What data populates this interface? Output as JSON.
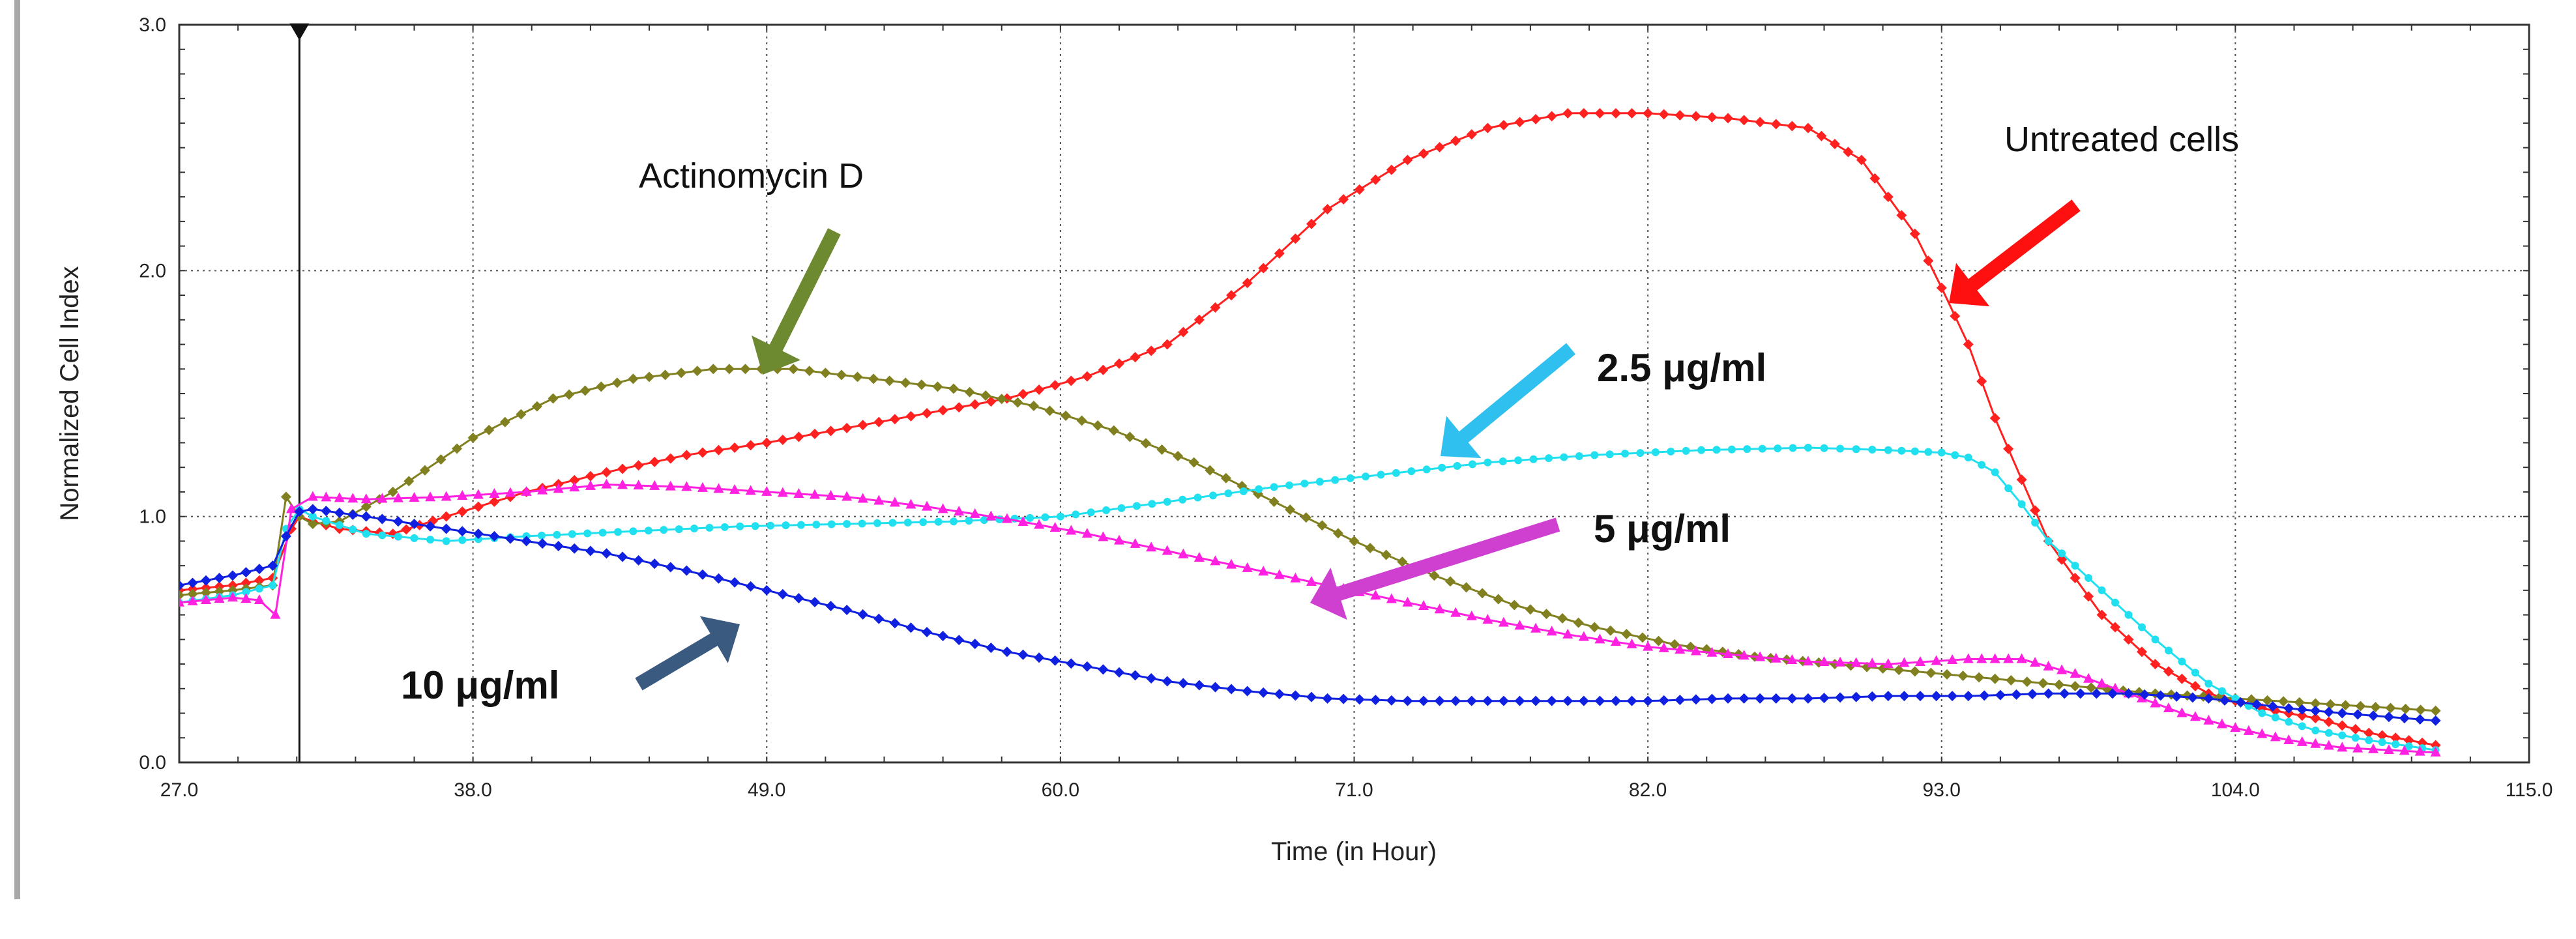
{
  "chart_data": {
    "type": "line",
    "title": "",
    "xlabel": "Time (in Hour)",
    "ylabel": "Normalized Cell Index",
    "xlim": [
      27.0,
      115.0
    ],
    "ylim": [
      0.0,
      3.0
    ],
    "xticks": [
      "27.0",
      "38.0",
      "49.0",
      "60.0",
      "71.0",
      "82.0",
      "93.0",
      "104.0",
      "115.0"
    ],
    "yticks": [
      "0.0",
      "1.0",
      "2.0",
      "3.0"
    ],
    "grid": true,
    "treatment_marker_time": 31.5,
    "series": [
      {
        "name": "Untreated cells",
        "color": "#ff2020",
        "marker": "diamond",
        "x": [
          27,
          29,
          30.5,
          31.2,
          31.5,
          32,
          33,
          35,
          37,
          40,
          43,
          46,
          49,
          52,
          55,
          58,
          61,
          64,
          67,
          70,
          73,
          76,
          79,
          82,
          85,
          88,
          90,
          92,
          93,
          94,
          95,
          97,
          99,
          101,
          103,
          105,
          107,
          109,
          111.5
        ],
        "y": [
          0.7,
          0.72,
          0.75,
          0.95,
          1.0,
          0.98,
          0.95,
          0.93,
          1.0,
          1.1,
          1.18,
          1.25,
          1.3,
          1.36,
          1.42,
          1.48,
          1.57,
          1.7,
          1.95,
          2.25,
          2.45,
          2.58,
          2.64,
          2.64,
          2.62,
          2.58,
          2.45,
          2.15,
          1.93,
          1.7,
          1.4,
          0.9,
          0.6,
          0.4,
          0.28,
          0.22,
          0.18,
          0.12,
          0.07
        ]
      },
      {
        "name": "Actinomycin D",
        "color": "#808020",
        "marker": "diamond",
        "x": [
          27,
          29,
          30.5,
          31,
          31.5,
          32,
          33,
          35,
          38,
          41,
          44,
          47,
          50,
          53,
          56,
          59,
          62,
          65,
          68,
          71,
          74,
          77,
          80,
          83,
          86,
          89,
          92,
          95,
          98,
          101,
          104,
          107,
          111.5
        ],
        "y": [
          0.68,
          0.7,
          0.72,
          1.08,
          1.0,
          0.97,
          0.98,
          1.1,
          1.32,
          1.48,
          1.56,
          1.6,
          1.6,
          1.56,
          1.52,
          1.45,
          1.35,
          1.22,
          1.06,
          0.9,
          0.76,
          0.64,
          0.55,
          0.48,
          0.43,
          0.4,
          0.37,
          0.34,
          0.31,
          0.28,
          0.26,
          0.24,
          0.21
        ]
      },
      {
        "name": "2.5 μg/ml",
        "color": "#20e0f0",
        "marker": "dot",
        "x": [
          27,
          29,
          30.5,
          31,
          31.5,
          32,
          34,
          37,
          40,
          44,
          48,
          52,
          56,
          60,
          64,
          68,
          72,
          76,
          80,
          84,
          88,
          91,
          93,
          94,
          95,
          96,
          97,
          99,
          101,
          103,
          105,
          107,
          109,
          111.5
        ],
        "y": [
          0.65,
          0.68,
          0.72,
          0.95,
          1.03,
          1.0,
          0.93,
          0.9,
          0.92,
          0.94,
          0.96,
          0.97,
          0.98,
          1.0,
          1.06,
          1.12,
          1.17,
          1.22,
          1.25,
          1.27,
          1.28,
          1.27,
          1.26,
          1.24,
          1.18,
          1.05,
          0.9,
          0.7,
          0.5,
          0.32,
          0.2,
          0.13,
          0.09,
          0.05
        ]
      },
      {
        "name": "5 μg/ml",
        "color": "#ff20e0",
        "marker": "triangle",
        "x": [
          27,
          29,
          30,
          30.6,
          31.2,
          32,
          34,
          37,
          40,
          43,
          46,
          49,
          52,
          55,
          58,
          61,
          64,
          67,
          70,
          73,
          76,
          79,
          82,
          85,
          88,
          91,
          94,
          96,
          98,
          100,
          102,
          104,
          106,
          108,
          111.5
        ],
        "y": [
          0.65,
          0.67,
          0.66,
          0.6,
          1.03,
          1.08,
          1.07,
          1.08,
          1.1,
          1.13,
          1.12,
          1.1,
          1.08,
          1.04,
          0.99,
          0.93,
          0.86,
          0.79,
          0.72,
          0.65,
          0.58,
          0.52,
          0.47,
          0.44,
          0.41,
          0.4,
          0.42,
          0.42,
          0.36,
          0.28,
          0.2,
          0.14,
          0.09,
          0.06,
          0.04
        ]
      },
      {
        "name": "10 μg/ml",
        "color": "#1020e0",
        "marker": "diamond",
        "x": [
          27,
          29,
          30.5,
          31,
          31.5,
          32,
          34,
          37,
          40,
          43,
          46,
          49,
          52,
          55,
          58,
          61,
          64,
          67,
          70,
          73,
          76,
          79,
          82,
          85,
          88,
          91,
          94,
          97,
          100,
          103,
          106,
          108,
          111.5
        ],
        "y": [
          0.72,
          0.76,
          0.8,
          0.92,
          1.02,
          1.03,
          1.0,
          0.95,
          0.9,
          0.85,
          0.78,
          0.7,
          0.62,
          0.53,
          0.45,
          0.39,
          0.33,
          0.29,
          0.26,
          0.25,
          0.25,
          0.25,
          0.25,
          0.26,
          0.26,
          0.27,
          0.27,
          0.28,
          0.28,
          0.26,
          0.22,
          0.2,
          0.17
        ]
      }
    ],
    "annotations": [
      {
        "id": "untreated",
        "text": "Untreated cells",
        "style": "plain",
        "arrow_color": "#ff1010"
      },
      {
        "id": "actinomycin",
        "text": "Actinomycin D",
        "style": "plain",
        "arrow_color": "#6e8a30"
      },
      {
        "id": "c25",
        "text": "2.5 μg/ml",
        "style": "bold",
        "arrow_color": "#30c0f0"
      },
      {
        "id": "c5",
        "text": "5 μg/ml",
        "style": "bold",
        "arrow_color": "#d040d0"
      },
      {
        "id": "c10",
        "text": "10 μg/ml",
        "style": "bold",
        "arrow_color": "#3a5a80"
      }
    ]
  }
}
